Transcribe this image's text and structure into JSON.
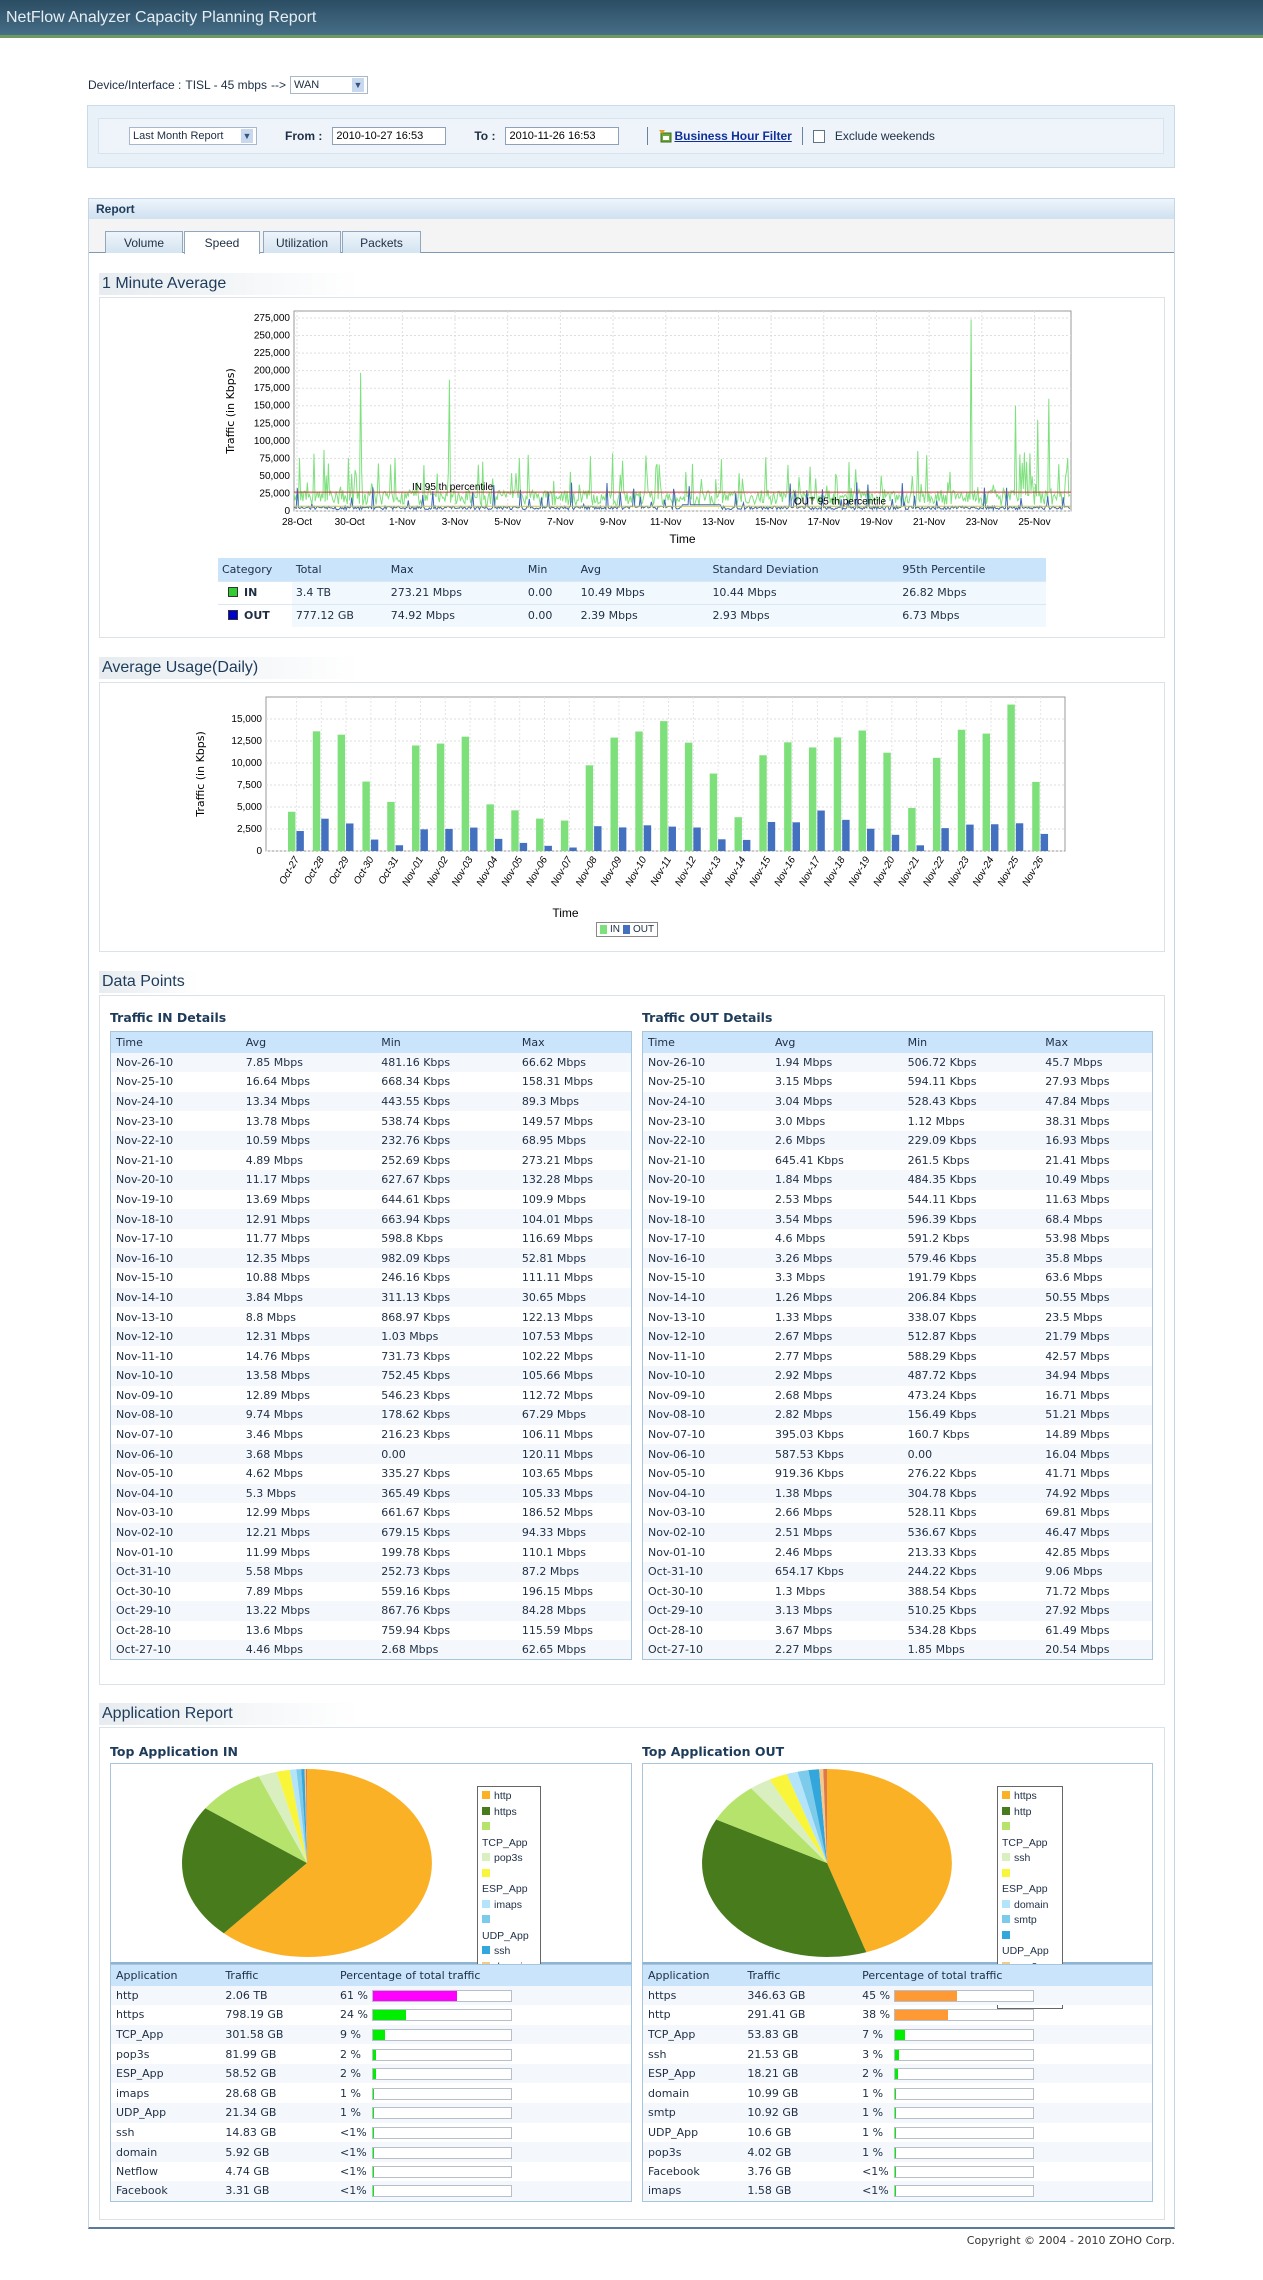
{
  "app_title": "NetFlow Analyzer Capacity Planning Report",
  "device": {
    "label": "Device/Interface :",
    "value": "TISL - 45 mbps",
    "arrow": "-->",
    "interface": "WAN"
  },
  "filter": {
    "period": "Last Month Report",
    "from_label": "From :",
    "from_value": "2010-10-27 16:53",
    "to_label": "To :",
    "to_value": "2010-11-26 16:53",
    "business_hour": "Business Hour Filter",
    "exclude_weekends": "Exclude weekends",
    "exclude_weekends_checked": false
  },
  "report": {
    "header": "Report",
    "tabs": [
      {
        "label": "Volume"
      },
      {
        "label": "Speed",
        "active": true
      },
      {
        "label": "Utilization"
      },
      {
        "label": "Packets"
      }
    ]
  },
  "minute_avg": {
    "title": "1 Minute Average",
    "stats_headers": [
      "Category",
      "Total",
      "Max",
      "Min",
      "Avg",
      "Standard Deviation",
      "95th Percentile"
    ],
    "stats": [
      {
        "name": "IN",
        "color": "#33cc33",
        "cells": [
          "3.4 TB",
          "273.21 Mbps",
          "0.00",
          "10.49 Mbps",
          "10.44 Mbps",
          "26.82 Mbps"
        ]
      },
      {
        "name": "OUT",
        "color": "#0000cc",
        "cells": [
          "777.12 GB",
          "74.92 Mbps",
          "0.00",
          "2.39 Mbps",
          "2.93 Mbps",
          "6.73 Mbps"
        ]
      }
    ]
  },
  "daily": {
    "title": "Average Usage(Daily)"
  },
  "chart_data": [
    {
      "type": "line",
      "title": "1 Minute Average",
      "xlabel": "Time",
      "ylabel": "Traffic (in Kbps)",
      "ylim": [
        0,
        285000
      ],
      "y_ticks": [
        "0",
        "25,000",
        "50,000",
        "75,000",
        "100,000",
        "125,000",
        "150,000",
        "175,000",
        "200,000",
        "225,000",
        "250,000",
        "275,000"
      ],
      "x_ticks": [
        "28-Oct",
        "30-Oct",
        "1-Nov",
        "3-Nov",
        "5-Nov",
        "7-Nov",
        "9-Nov",
        "11-Nov",
        "13-Nov",
        "15-Nov",
        "17-Nov",
        "19-Nov",
        "21-Nov",
        "23-Nov",
        "25-Nov"
      ],
      "series": [
        {
          "name": "IN",
          "color": "#7fe07f",
          "avg": 10490,
          "max": 273210
        },
        {
          "name": "OUT",
          "color": "#3f67b5",
          "avg": 2390,
          "max": 74920
        }
      ],
      "annotations": [
        {
          "text": "IN 95 th percentile",
          "value": 26820,
          "color": "#cc3333"
        },
        {
          "text": "OUT 95 th percentile",
          "value": 6730,
          "color": "#c8c83a"
        }
      ],
      "grid": true
    },
    {
      "type": "bar",
      "title": "Average Usage(Daily)",
      "xlabel": "Time",
      "ylabel": "Traffic (in Kbps)",
      "ylim": [
        0,
        17500
      ],
      "y_ticks": [
        "0",
        "2,500",
        "5,000",
        "7,500",
        "10,000",
        "12,500",
        "15,000"
      ],
      "categories": [
        "Oct-27",
        "Oct-28",
        "Oct-29",
        "Oct-30",
        "Oct-31",
        "Nov-01",
        "Nov-02",
        "Nov-03",
        "Nov-04",
        "Nov-05",
        "Nov-06",
        "Nov-07",
        "Nov-08",
        "Nov-09",
        "Nov-10",
        "Nov-11",
        "Nov-12",
        "Nov-13",
        "Nov-14",
        "Nov-15",
        "Nov-16",
        "Nov-17",
        "Nov-18",
        "Nov-19",
        "Nov-20",
        "Nov-21",
        "Nov-22",
        "Nov-23",
        "Nov-24",
        "Nov-25",
        "Nov-26"
      ],
      "series": [
        {
          "name": "IN",
          "color": "#7ee07a",
          "values": [
            4460,
            13600,
            13220,
            7890,
            5580,
            11990,
            12210,
            12990,
            5300,
            4620,
            3680,
            3460,
            9740,
            12890,
            13580,
            14760,
            12310,
            8800,
            3840,
            10880,
            12350,
            11770,
            12910,
            13690,
            11170,
            4890,
            10590,
            13780,
            13340,
            16640,
            7850
          ]
        },
        {
          "name": "OUT",
          "color": "#4470c0",
          "values": [
            2270,
            3670,
            3130,
            1300,
            654,
            2460,
            2510,
            2660,
            1380,
            919,
            588,
            395,
            2820,
            2680,
            2920,
            2770,
            2670,
            1330,
            1260,
            3300,
            3260,
            4600,
            3540,
            2530,
            1840,
            645,
            2600,
            3000,
            3040,
            3150,
            1940
          ]
        }
      ],
      "legend": "bottom",
      "grid": true
    },
    {
      "type": "pie",
      "title": "Top Application IN",
      "slices": [
        {
          "label": "http",
          "value": 2109.4,
          "color": "#fbb126"
        },
        {
          "label": "https",
          "value": 798.19,
          "color": "#477b1c"
        },
        {
          "label": "TCP_App",
          "value": 301.58,
          "color": "#b5e36b"
        },
        {
          "label": "pop3s",
          "value": 81.99,
          "color": "#d9efc0"
        },
        {
          "label": "ESP_App",
          "value": 58.52,
          "color": "#f8f53a"
        },
        {
          "label": "imaps",
          "value": 28.68,
          "color": "#b4e4f9"
        },
        {
          "label": "UDP_App",
          "value": 21.34,
          "color": "#7ccbea"
        },
        {
          "label": "ssh",
          "value": 14.83,
          "color": "#33a7dc"
        },
        {
          "label": "domain",
          "value": 5.92,
          "color": "#f5c98a"
        },
        {
          "label": "Netflow",
          "value": 4.74,
          "color": "#dd7a4c"
        }
      ]
    },
    {
      "type": "pie",
      "title": "Top Application OUT",
      "slices": [
        {
          "label": "https",
          "value": 346.63,
          "color": "#fbb126"
        },
        {
          "label": "http",
          "value": 291.41,
          "color": "#477b1c"
        },
        {
          "label": "TCP_App",
          "value": 53.83,
          "color": "#b5e36b"
        },
        {
          "label": "ssh",
          "value": 21.53,
          "color": "#d9efc0"
        },
        {
          "label": "ESP_App",
          "value": 18.21,
          "color": "#f8f53a"
        },
        {
          "label": "domain",
          "value": 10.99,
          "color": "#b4e4f9"
        },
        {
          "label": "smtp",
          "value": 10.92,
          "color": "#7ccbea"
        },
        {
          "label": "UDP_App",
          "value": 10.6,
          "color": "#33a7dc"
        },
        {
          "label": "pop3s",
          "value": 4.02,
          "color": "#f5c98a"
        },
        {
          "label": "Facebook",
          "value": 3.76,
          "color": "#dd7a4c"
        }
      ]
    }
  ],
  "data_points": {
    "title": "Data Points",
    "headers": [
      "Time",
      "Avg",
      "Min",
      "Max"
    ],
    "in_title": "Traffic IN Details",
    "in_rows": [
      [
        "Nov-26-10",
        "7.85 Mbps",
        "481.16 Kbps",
        "66.62 Mbps"
      ],
      [
        "Nov-25-10",
        "16.64 Mbps",
        "668.34 Kbps",
        "158.31 Mbps"
      ],
      [
        "Nov-24-10",
        "13.34 Mbps",
        "443.55 Kbps",
        "89.3 Mbps"
      ],
      [
        "Nov-23-10",
        "13.78 Mbps",
        "538.74 Kbps",
        "149.57 Mbps"
      ],
      [
        "Nov-22-10",
        "10.59 Mbps",
        "232.76 Kbps",
        "68.95 Mbps"
      ],
      [
        "Nov-21-10",
        "4.89 Mbps",
        "252.69 Kbps",
        "273.21 Mbps"
      ],
      [
        "Nov-20-10",
        "11.17 Mbps",
        "627.67 Kbps",
        "132.28 Mbps"
      ],
      [
        "Nov-19-10",
        "13.69 Mbps",
        "644.61 Kbps",
        "109.9 Mbps"
      ],
      [
        "Nov-18-10",
        "12.91 Mbps",
        "663.94 Kbps",
        "104.01 Mbps"
      ],
      [
        "Nov-17-10",
        "11.77 Mbps",
        "598.8 Kbps",
        "116.69 Mbps"
      ],
      [
        "Nov-16-10",
        "12.35 Mbps",
        "982.09 Kbps",
        "52.81 Mbps"
      ],
      [
        "Nov-15-10",
        "10.88 Mbps",
        "246.16 Kbps",
        "111.11 Mbps"
      ],
      [
        "Nov-14-10",
        "3.84 Mbps",
        "311.13 Kbps",
        "30.65 Mbps"
      ],
      [
        "Nov-13-10",
        "8.8 Mbps",
        "868.97 Kbps",
        "122.13 Mbps"
      ],
      [
        "Nov-12-10",
        "12.31 Mbps",
        "1.03 Mbps",
        "107.53 Mbps"
      ],
      [
        "Nov-11-10",
        "14.76 Mbps",
        "731.73 Kbps",
        "102.22 Mbps"
      ],
      [
        "Nov-10-10",
        "13.58 Mbps",
        "752.45 Kbps",
        "105.66 Mbps"
      ],
      [
        "Nov-09-10",
        "12.89 Mbps",
        "546.23 Kbps",
        "112.72 Mbps"
      ],
      [
        "Nov-08-10",
        "9.74 Mbps",
        "178.62 Kbps",
        "67.29 Mbps"
      ],
      [
        "Nov-07-10",
        "3.46 Mbps",
        "216.23 Kbps",
        "106.11 Mbps"
      ],
      [
        "Nov-06-10",
        "3.68 Mbps",
        "0.00",
        "120.11 Mbps"
      ],
      [
        "Nov-05-10",
        "4.62 Mbps",
        "335.27 Kbps",
        "103.65 Mbps"
      ],
      [
        "Nov-04-10",
        "5.3 Mbps",
        "365.49 Kbps",
        "105.33 Mbps"
      ],
      [
        "Nov-03-10",
        "12.99 Mbps",
        "661.67 Kbps",
        "186.52 Mbps"
      ],
      [
        "Nov-02-10",
        "12.21 Mbps",
        "679.15 Kbps",
        "94.33 Mbps"
      ],
      [
        "Nov-01-10",
        "11.99 Mbps",
        "199.78 Kbps",
        "110.1 Mbps"
      ],
      [
        "Oct-31-10",
        "5.58 Mbps",
        "252.73 Kbps",
        "87.2 Mbps"
      ],
      [
        "Oct-30-10",
        "7.89 Mbps",
        "559.16 Kbps",
        "196.15 Mbps"
      ],
      [
        "Oct-29-10",
        "13.22 Mbps",
        "867.76 Kbps",
        "84.28 Mbps"
      ],
      [
        "Oct-28-10",
        "13.6 Mbps",
        "759.94 Kbps",
        "115.59 Mbps"
      ],
      [
        "Oct-27-10",
        "4.46 Mbps",
        "2.68 Mbps",
        "62.65 Mbps"
      ]
    ],
    "out_title": "Traffic OUT Details",
    "out_rows": [
      [
        "Nov-26-10",
        "1.94 Mbps",
        "506.72 Kbps",
        "45.7 Mbps"
      ],
      [
        "Nov-25-10",
        "3.15 Mbps",
        "594.11 Kbps",
        "27.93 Mbps"
      ],
      [
        "Nov-24-10",
        "3.04 Mbps",
        "528.43 Kbps",
        "47.84 Mbps"
      ],
      [
        "Nov-23-10",
        "3.0 Mbps",
        "1.12 Mbps",
        "38.31 Mbps"
      ],
      [
        "Nov-22-10",
        "2.6 Mbps",
        "229.09 Kbps",
        "16.93 Mbps"
      ],
      [
        "Nov-21-10",
        "645.41 Kbps",
        "261.5 Kbps",
        "21.41 Mbps"
      ],
      [
        "Nov-20-10",
        "1.84 Mbps",
        "484.35 Kbps",
        "10.49 Mbps"
      ],
      [
        "Nov-19-10",
        "2.53 Mbps",
        "544.11 Kbps",
        "11.63 Mbps"
      ],
      [
        "Nov-18-10",
        "3.54 Mbps",
        "596.39 Kbps",
        "68.4 Mbps"
      ],
      [
        "Nov-17-10",
        "4.6 Mbps",
        "591.2 Kbps",
        "53.98 Mbps"
      ],
      [
        "Nov-16-10",
        "3.26 Mbps",
        "579.46 Kbps",
        "35.8 Mbps"
      ],
      [
        "Nov-15-10",
        "3.3 Mbps",
        "191.79 Kbps",
        "63.6 Mbps"
      ],
      [
        "Nov-14-10",
        "1.26 Mbps",
        "206.84 Kbps",
        "50.55 Mbps"
      ],
      [
        "Nov-13-10",
        "1.33 Mbps",
        "338.07 Kbps",
        "23.5 Mbps"
      ],
      [
        "Nov-12-10",
        "2.67 Mbps",
        "512.87 Kbps",
        "21.79 Mbps"
      ],
      [
        "Nov-11-10",
        "2.77 Mbps",
        "588.29 Kbps",
        "42.57 Mbps"
      ],
      [
        "Nov-10-10",
        "2.92 Mbps",
        "487.72 Kbps",
        "34.94 Mbps"
      ],
      [
        "Nov-09-10",
        "2.68 Mbps",
        "473.24 Kbps",
        "16.71 Mbps"
      ],
      [
        "Nov-08-10",
        "2.82 Mbps",
        "156.49 Kbps",
        "51.21 Mbps"
      ],
      [
        "Nov-07-10",
        "395.03 Kbps",
        "160.7 Kbps",
        "14.89 Mbps"
      ],
      [
        "Nov-06-10",
        "587.53 Kbps",
        "0.00",
        "16.04 Mbps"
      ],
      [
        "Nov-05-10",
        "919.36 Kbps",
        "276.22 Kbps",
        "41.71 Mbps"
      ],
      [
        "Nov-04-10",
        "1.38 Mbps",
        "304.78 Kbps",
        "74.92 Mbps"
      ],
      [
        "Nov-03-10",
        "2.66 Mbps",
        "528.11 Kbps",
        "69.81 Mbps"
      ],
      [
        "Nov-02-10",
        "2.51 Mbps",
        "536.67 Kbps",
        "46.47 Mbps"
      ],
      [
        "Nov-01-10",
        "2.46 Mbps",
        "213.33 Kbps",
        "42.85 Mbps"
      ],
      [
        "Oct-31-10",
        "654.17 Kbps",
        "244.22 Kbps",
        "9.06 Mbps"
      ],
      [
        "Oct-30-10",
        "1.3 Mbps",
        "388.54 Kbps",
        "71.72 Mbps"
      ],
      [
        "Oct-29-10",
        "3.13 Mbps",
        "510.25 Kbps",
        "27.92 Mbps"
      ],
      [
        "Oct-28-10",
        "3.67 Mbps",
        "534.28 Kbps",
        "61.49 Mbps"
      ],
      [
        "Oct-27-10",
        "2.27 Mbps",
        "1.85 Mbps",
        "20.54 Mbps"
      ]
    ]
  },
  "app_report": {
    "title": "Application Report",
    "headers": [
      "Application",
      "Traffic",
      "Percentage of total traffic"
    ],
    "in_title": "Top Application IN",
    "in_rows": [
      {
        "app": "http",
        "traffic": "2.06 TB",
        "pct_label": "61 %",
        "pct": 61,
        "color": "#ff00ff"
      },
      {
        "app": "https",
        "traffic": "798.19 GB",
        "pct_label": "24 %",
        "pct": 24,
        "color": "#00ee00"
      },
      {
        "app": "TCP_App",
        "traffic": "301.58 GB",
        "pct_label": "9 %",
        "pct": 9,
        "color": "#00ee00"
      },
      {
        "app": "pop3s",
        "traffic": "81.99 GB",
        "pct_label": "2 %",
        "pct": 2,
        "color": "#00ee00"
      },
      {
        "app": "ESP_App",
        "traffic": "58.52 GB",
        "pct_label": "2 %",
        "pct": 2,
        "color": "#00ee00"
      },
      {
        "app": "imaps",
        "traffic": "28.68 GB",
        "pct_label": "1 %",
        "pct": 1,
        "color": "#00ee00"
      },
      {
        "app": "UDP_App",
        "traffic": "21.34 GB",
        "pct_label": "1 %",
        "pct": 1,
        "color": "#00ee00"
      },
      {
        "app": "ssh",
        "traffic": "14.83 GB",
        "pct_label": "<1%",
        "pct": 0.5,
        "color": "#00ee00"
      },
      {
        "app": "domain",
        "traffic": "5.92 GB",
        "pct_label": "<1%",
        "pct": 0.5,
        "color": "#00ee00"
      },
      {
        "app": "Netflow",
        "traffic": "4.74 GB",
        "pct_label": "<1%",
        "pct": 0.5,
        "color": "#00ee00"
      },
      {
        "app": "Facebook",
        "traffic": "3.31 GB",
        "pct_label": "<1%",
        "pct": 0.5,
        "color": "#00ee00"
      }
    ],
    "out_title": "Top Application OUT",
    "out_rows": [
      {
        "app": "https",
        "traffic": "346.63 GB",
        "pct_label": "45 %",
        "pct": 45,
        "color": "#ff9933"
      },
      {
        "app": "http",
        "traffic": "291.41 GB",
        "pct_label": "38 %",
        "pct": 38,
        "color": "#ff9933"
      },
      {
        "app": "TCP_App",
        "traffic": "53.83 GB",
        "pct_label": "7 %",
        "pct": 7,
        "color": "#00ee00"
      },
      {
        "app": "ssh",
        "traffic": "21.53 GB",
        "pct_label": "3 %",
        "pct": 3,
        "color": "#00ee00"
      },
      {
        "app": "ESP_App",
        "traffic": "18.21 GB",
        "pct_label": "2 %",
        "pct": 2,
        "color": "#00ee00"
      },
      {
        "app": "domain",
        "traffic": "10.99 GB",
        "pct_label": "1 %",
        "pct": 1,
        "color": "#00ee00"
      },
      {
        "app": "smtp",
        "traffic": "10.92 GB",
        "pct_label": "1 %",
        "pct": 1,
        "color": "#00ee00"
      },
      {
        "app": "UDP_App",
        "traffic": "10.6 GB",
        "pct_label": "1 %",
        "pct": 1,
        "color": "#00ee00"
      },
      {
        "app": "pop3s",
        "traffic": "4.02 GB",
        "pct_label": "1 %",
        "pct": 1,
        "color": "#00ee00"
      },
      {
        "app": "Facebook",
        "traffic": "3.76 GB",
        "pct_label": "<1%",
        "pct": 0.5,
        "color": "#00ee00"
      },
      {
        "app": "imaps",
        "traffic": "1.58 GB",
        "pct_label": "<1%",
        "pct": 0.5,
        "color": "#00ee00"
      }
    ]
  },
  "footer": {
    "copyright": "Copyright © 2004 - 2010 ZOHO Corp."
  }
}
